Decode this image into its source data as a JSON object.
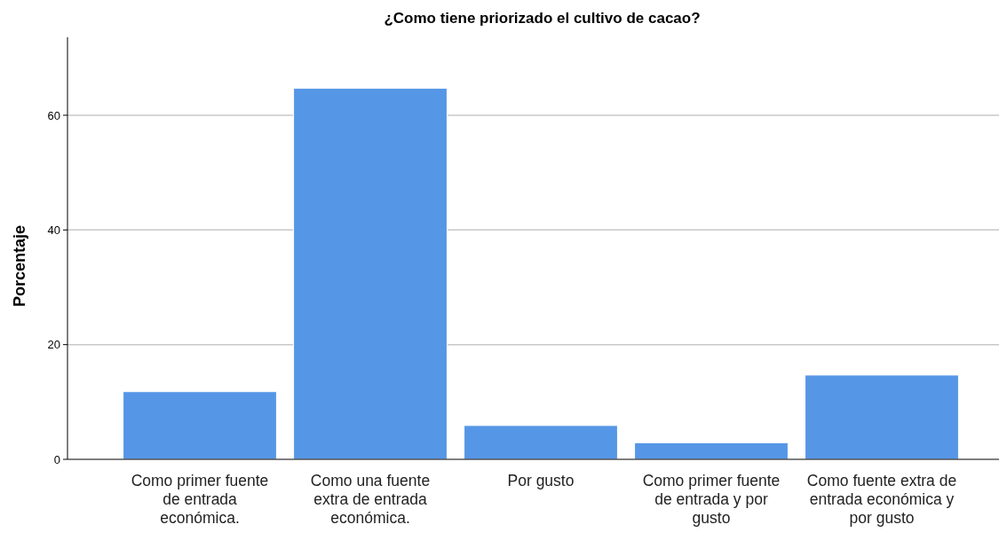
{
  "chart_data": {
    "type": "bar",
    "title": "¿Como tiene priorizado el cultivo de cacao?",
    "ylabel": "Porcentaje",
    "categories": [
      "Como primer fuente de entrada económica.",
      "Como una fuente extra de entrada económica.",
      "Por gusto",
      "Como primer fuente de entrada y por gusto",
      "Como fuente extra de entrada económica y por gusto"
    ],
    "values": [
      11.8,
      64.7,
      5.9,
      2.9,
      14.7
    ],
    "color": "#5596e6",
    "ylim": [
      0,
      73.6
    ],
    "yticks": [
      0,
      20,
      40,
      60
    ],
    "grid": "y"
  }
}
